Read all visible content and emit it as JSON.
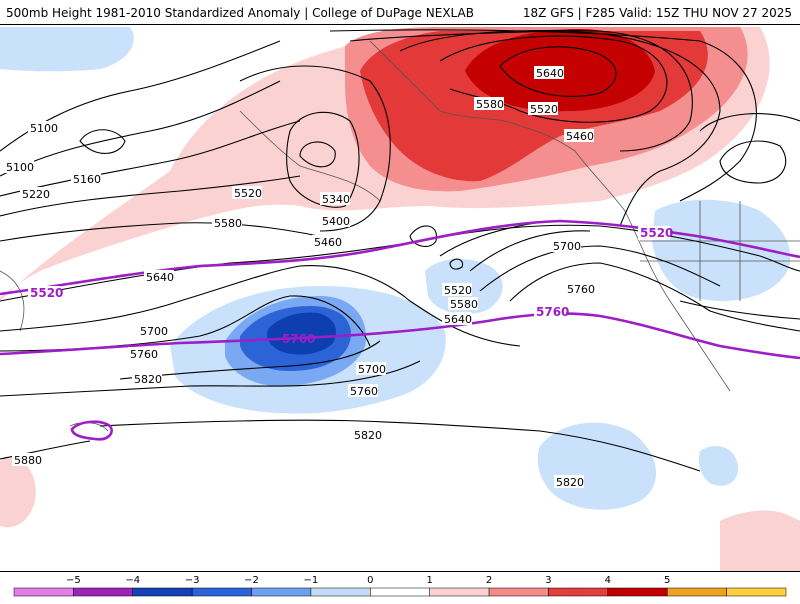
{
  "header": {
    "title": "500mb Height 1981-2010 Standardized Anomaly | College of DuPage NEXLAB",
    "run_info": "18Z GFS | F285 Valid: 15Z THU NOV 27 2025"
  },
  "contours": {
    "labels": [
      "5100",
      "5100",
      "5160",
      "5220",
      "5340",
      "5400",
      "5460",
      "5520",
      "5580",
      "5640",
      "5700",
      "5760",
      "5820",
      "5880",
      "5640",
      "5580",
      "5520",
      "5460",
      "5520",
      "5580",
      "5640",
      "5700",
      "5760",
      "5700",
      "5760",
      "5820",
      "5820"
    ],
    "highlight_labels": [
      "5520",
      "5520",
      "5760",
      "5760"
    ]
  },
  "legend": {
    "ticks": [
      "−5",
      "−4",
      "−3",
      "−2",
      "−1",
      "0",
      "1",
      "2",
      "3",
      "4",
      "5"
    ],
    "colors": [
      "#e47ee6",
      "#9b26b6",
      "#1541b5",
      "#2b63d8",
      "#6f9ff0",
      "#c2dcf8",
      "#ffffff",
      "#fcd0d0",
      "#f48b8b",
      "#e43e3e",
      "#c00000",
      "#f0a020",
      "#ffcf40"
    ]
  },
  "colors": {
    "positive_light": "#fbd2d2",
    "positive_mid": "#f58f8f",
    "positive_strong": "#e43939",
    "positive_max": "#c50000",
    "negative_light": "#c9e1fa",
    "negative_mid": "#7aa8f2",
    "negative_strong": "#2c63d6",
    "negative_max": "#0d3fb1",
    "highlight_contour": "#9d1ec6"
  }
}
